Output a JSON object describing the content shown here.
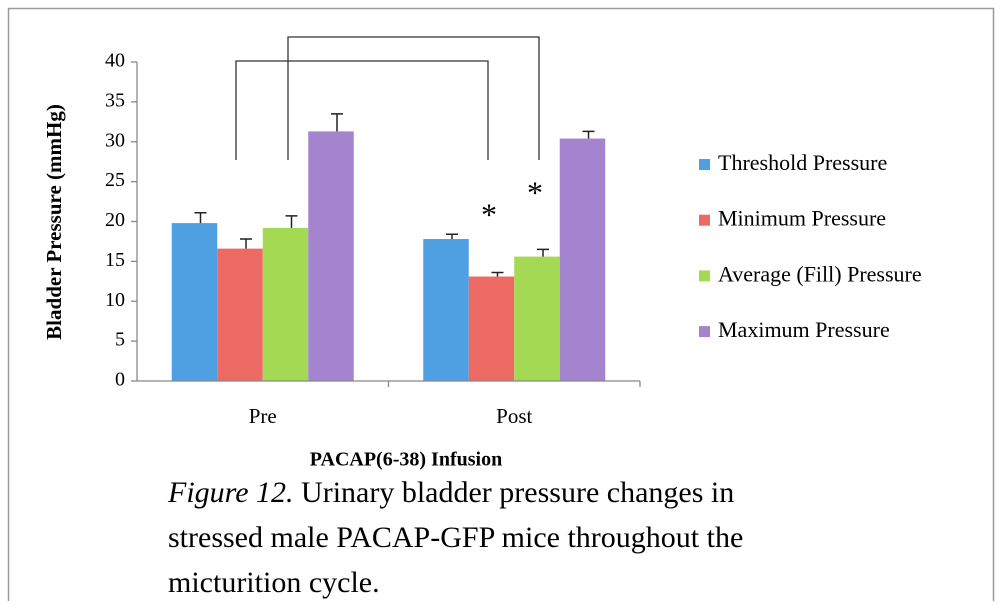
{
  "chart_data": {
    "type": "bar",
    "ylabel": "Bladder Pressure (mmHg)",
    "xlabel": "PACAP(6-38) Infusion",
    "categories": [
      "Pre",
      "Post"
    ],
    "series": [
      {
        "name": "Threshold Pressure",
        "color": "#4f9fe3",
        "values": [
          19.8,
          17.8
        ],
        "errors": [
          1.3,
          0.6
        ]
      },
      {
        "name": "Minimum Pressure",
        "color": "#ec6a63",
        "values": [
          16.6,
          13.1
        ],
        "errors": [
          1.2,
          0.5
        ]
      },
      {
        "name": "Average (Fill) Pressure",
        "color": "#a3d953",
        "values": [
          19.2,
          15.6
        ],
        "errors": [
          1.5,
          0.9
        ]
      },
      {
        "name": "Maximum Pressure",
        "color": "#a584cf",
        "values": [
          31.3,
          30.4
        ],
        "errors": [
          2.2,
          0.9
        ]
      }
    ],
    "ylim": [
      0,
      40
    ],
    "yticks": [
      0,
      5,
      10,
      15,
      20,
      25,
      30,
      35,
      40
    ],
    "legend": "right",
    "annotations": [
      "*",
      "*"
    ],
    "figure_label": "Figure 12.",
    "caption": "Urinary bladder pressure changes in stressed male PACAP-GFP mice throughout the micturition cycle."
  }
}
